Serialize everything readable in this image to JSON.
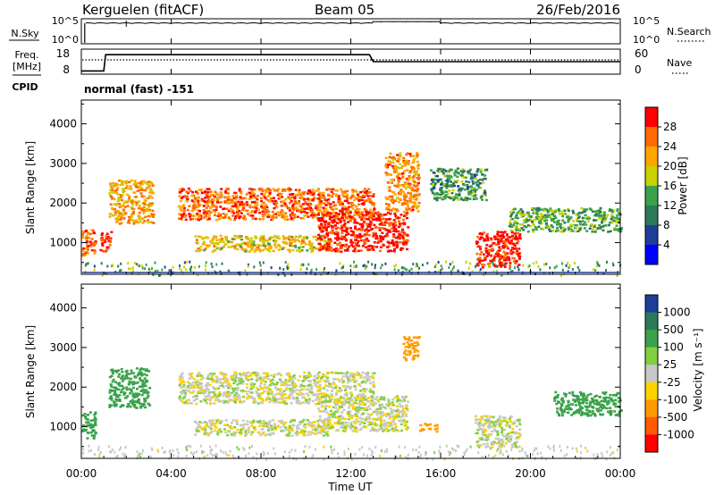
{
  "header": {
    "station": "Kerguelen (fitACF)",
    "beam": "Beam 05",
    "date": "26/Feb/2016"
  },
  "noise_panel": {
    "left_label": "N.Sky",
    "right_label": "N.Search",
    "left_ticks": [
      "10^5",
      "10^0"
    ],
    "right_ticks": [
      "10^5",
      "10^0"
    ]
  },
  "freq_panel": {
    "left_label_top": "Freq.",
    "left_label_bottom": "[MHz]",
    "right_label": "Nave",
    "left_ticks": [
      "18",
      "8"
    ],
    "right_ticks": [
      "60",
      "0"
    ]
  },
  "cpid": {
    "label": "CPID",
    "value": "normal (fast) -151"
  },
  "power_panel": {
    "ylabel": "Slant Range [km]",
    "yticks": [
      "4000",
      "3000",
      "2000",
      "1000"
    ],
    "colorbar_label": "Power [dB]",
    "colorbar_ticks": [
      "28",
      "24",
      "20",
      "16",
      "12",
      "8",
      "4"
    ],
    "colorbar_colors": [
      "#ff0000",
      "#ff6a00",
      "#ffa500",
      "#c8d200",
      "#3aa24a",
      "#2b7a5a",
      "#1f3e9a",
      "#0000ff"
    ]
  },
  "velocity_panel": {
    "ylabel": "Slant Range [km]",
    "yticks": [
      "4000",
      "3000",
      "2000",
      "1000"
    ],
    "colorbar_label": "Velocity [m s⁻¹]",
    "colorbar_ticks": [
      "1000",
      "500",
      "100",
      "25",
      "-25",
      "-100",
      "-500",
      "-1000"
    ],
    "colorbar_colors": [
      "#1f3e9a",
      "#2b7a5a",
      "#3aa24a",
      "#80d040",
      "#c8c8c8",
      "#ffd200",
      "#ff9a00",
      "#ff5a00",
      "#ff0000"
    ]
  },
  "x_axis": {
    "xlabel": "Time UT",
    "ticks": [
      "00:00",
      "04:00",
      "08:00",
      "12:00",
      "16:00",
      "20:00",
      "00:00"
    ]
  },
  "chart_data": [
    {
      "type": "line",
      "title": "N.Sky",
      "x": [
        "00:00",
        "00:10",
        "02:00",
        "13:00",
        "14:40",
        "18:40",
        "24:00"
      ],
      "y_scale": "log",
      "ylim": [
        1,
        100000
      ],
      "series": [
        {
          "name": "N.Sky",
          "values": [
            1,
            20000,
            30000,
            30000,
            60000,
            30000,
            30000
          ]
        }
      ]
    },
    {
      "type": "line",
      "title": "Freq. [MHz]",
      "x": [
        "00:00",
        "01:00",
        "01:05",
        "12:50",
        "13:00",
        "24:00"
      ],
      "ylim": [
        8,
        18
      ],
      "series": [
        {
          "name": "Freq.",
          "values": [
            9,
            9,
            16,
            16,
            13,
            13
          ]
        }
      ]
    },
    {
      "type": "heatmap",
      "title": "Power [dB]",
      "xlabel": "Time UT",
      "ylabel": "Slant Range [km]",
      "xlim": [
        "00:00",
        "24:00"
      ],
      "ylim": [
        200,
        4600
      ],
      "zlim": [
        0,
        30
      ],
      "scatter_regions": [
        {
          "time_start": 0.0,
          "time_end": 0.6,
          "range_start": 700,
          "range_end": 1400,
          "power": 24
        },
        {
          "time_start": 0.8,
          "time_end": 1.3,
          "range_start": 800,
          "range_end": 1300,
          "power": 28
        },
        {
          "time_start": 1.2,
          "time_end": 3.2,
          "range_start": 1500,
          "range_end": 2600,
          "power": 20
        },
        {
          "time_start": 4.3,
          "time_end": 13.0,
          "range_start": 1600,
          "range_end": 2400,
          "power": 24
        },
        {
          "time_start": 5.0,
          "time_end": 11.0,
          "range_start": 800,
          "range_end": 1200,
          "power": 18
        },
        {
          "time_start": 10.5,
          "time_end": 14.5,
          "range_start": 800,
          "range_end": 1800,
          "power": 28
        },
        {
          "time_start": 13.5,
          "time_end": 15.0,
          "range_start": 1800,
          "range_end": 3300,
          "power": 22
        },
        {
          "time_start": 15.5,
          "time_end": 18.0,
          "range_start": 2100,
          "range_end": 2900,
          "power": 10
        },
        {
          "time_start": 17.5,
          "time_end": 19.5,
          "range_start": 400,
          "range_end": 1300,
          "power": 28
        },
        {
          "time_start": 19.0,
          "time_end": 24.0,
          "range_start": 1300,
          "range_end": 1900,
          "power": 12
        }
      ]
    },
    {
      "type": "heatmap",
      "title": "Velocity [m s⁻¹]",
      "xlabel": "Time UT",
      "ylabel": "Slant Range [km]",
      "xlim": [
        "00:00",
        "24:00"
      ],
      "ylim": [
        200,
        4600
      ],
      "zlim": [
        -1000,
        1000
      ],
      "scatter_regions": [
        {
          "time_start": 0.0,
          "time_end": 0.6,
          "range_start": 700,
          "range_end": 1400,
          "velocity": 200
        },
        {
          "time_start": 1.2,
          "time_end": 3.0,
          "range_start": 1500,
          "range_end": 2500,
          "velocity": 400
        },
        {
          "time_start": 4.3,
          "time_end": 13.0,
          "range_start": 1600,
          "range_end": 2400,
          "velocity": 0
        },
        {
          "time_start": 5.0,
          "time_end": 11.0,
          "range_start": 800,
          "range_end": 1200,
          "velocity": 0
        },
        {
          "time_start": 10.5,
          "time_end": 14.5,
          "range_start": 900,
          "range_end": 1800,
          "velocity": 0
        },
        {
          "time_start": 14.3,
          "time_end": 15.0,
          "range_start": 2700,
          "range_end": 3300,
          "velocity": -300
        },
        {
          "time_start": 15.0,
          "time_end": 15.8,
          "range_start": 900,
          "range_end": 1100,
          "velocity": -300
        },
        {
          "time_start": 17.5,
          "time_end": 19.5,
          "range_start": 500,
          "range_end": 1300,
          "velocity": 0
        },
        {
          "time_start": 21.0,
          "time_end": 24.0,
          "range_start": 1300,
          "range_end": 1900,
          "velocity": 300
        }
      ]
    }
  ]
}
